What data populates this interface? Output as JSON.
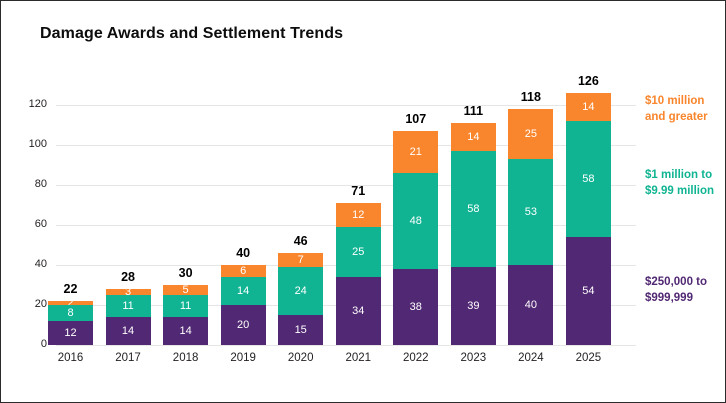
{
  "title": "Damage Awards and Settlement Trends",
  "colors": {
    "purple": "#512873",
    "teal": "#10B493",
    "orange": "#F9852C",
    "gridline": "#E6E6E6",
    "axis_text": "#231F20",
    "total_text": "#000000",
    "frame_border": "#2B2B2B"
  },
  "chart_data": {
    "type": "bar",
    "stacked": true,
    "title": "Damage Awards and Settlement Trends",
    "categories": [
      "2016",
      "2017",
      "2018",
      "2019",
      "2020",
      "2021",
      "2022",
      "2023",
      "2024",
      "2025"
    ],
    "series": [
      {
        "name": "$250,000 to $999,999",
        "color_key": "purple",
        "values": [
          12,
          14,
          14,
          20,
          15,
          34,
          38,
          39,
          40,
          54
        ]
      },
      {
        "name": "$1 million to $9.99 million",
        "color_key": "teal",
        "values": [
          8,
          11,
          11,
          14,
          24,
          25,
          48,
          58,
          53,
          58
        ]
      },
      {
        "name": "$10 million and greater",
        "color_key": "orange",
        "values": [
          2,
          3,
          5,
          6,
          7,
          12,
          21,
          14,
          25,
          14
        ]
      }
    ],
    "totals": [
      22,
      28,
      30,
      40,
      46,
      71,
      107,
      111,
      118,
      126
    ],
    "ylim": [
      0,
      120
    ],
    "yticks": [
      0,
      20,
      40,
      60,
      80,
      100,
      120
    ],
    "grid": true,
    "legend_position": "right",
    "xlabel": "",
    "ylabel": ""
  }
}
